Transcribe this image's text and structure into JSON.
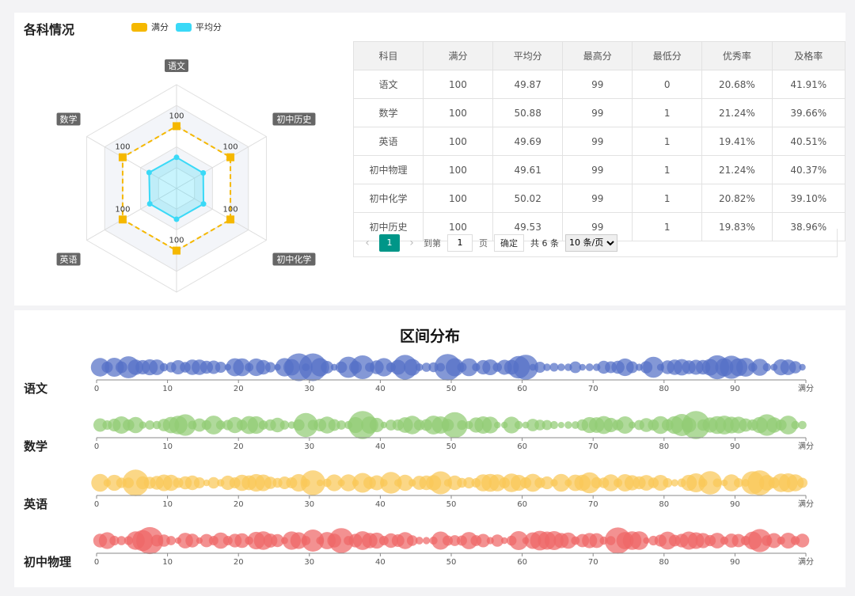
{
  "radar_section": {
    "title": "各科情况",
    "legend": [
      {
        "label": "满分",
        "color": "#f5b800"
      },
      {
        "label": "平均分",
        "color": "#3ad9f7"
      }
    ]
  },
  "chart_data": [
    {
      "type": "radar",
      "indicators": [
        "语文",
        "初中历史",
        "初中化学",
        "英语",
        "数学"
      ],
      "indicators_all": [
        "语文",
        "初中历史",
        "初中化学",
        "初中物理",
        "英语",
        "数学"
      ],
      "max": 100,
      "series": [
        {
          "name": "满分",
          "values": [
            100,
            100,
            100,
            100,
            100,
            100
          ],
          "labels": [
            "100",
            "100",
            "100",
            "100",
            "100",
            "100"
          ],
          "color": "#f5b800"
        },
        {
          "name": "平均分",
          "values": [
            49.87,
            49.53,
            50.02,
            49.61,
            49.69,
            50.88
          ],
          "color": "#3ad9f7"
        }
      ]
    },
    {
      "type": "scatter",
      "title": "区间分布",
      "x_ticks": [
        "0",
        "10",
        "20",
        "30",
        "40",
        "50",
        "60",
        "70",
        "80",
        "90",
        "满分"
      ],
      "xlim": [
        0,
        100
      ],
      "rows": [
        {
          "label": "语文",
          "color": "#5470c6",
          "seed": 3
        },
        {
          "label": "数学",
          "color": "#91cc75",
          "seed": 7
        },
        {
          "label": "英语",
          "color": "#fac858",
          "seed": 11
        },
        {
          "label": "初中物理",
          "color": "#ee6666",
          "seed": 19
        }
      ]
    }
  ],
  "table": {
    "headers": [
      "科目",
      "满分",
      "平均分",
      "最高分",
      "最低分",
      "优秀率",
      "及格率"
    ],
    "rows": [
      [
        "语文",
        "100",
        "49.87",
        "99",
        "0",
        "20.68%",
        "41.91%"
      ],
      [
        "数学",
        "100",
        "50.88",
        "99",
        "1",
        "21.24%",
        "39.66%"
      ],
      [
        "英语",
        "100",
        "49.69",
        "99",
        "1",
        "19.41%",
        "40.51%"
      ],
      [
        "初中物理",
        "100",
        "49.61",
        "99",
        "1",
        "21.24%",
        "40.37%"
      ],
      [
        "初中化学",
        "100",
        "50.02",
        "99",
        "1",
        "20.82%",
        "39.10%"
      ],
      [
        "初中历史",
        "100",
        "49.53",
        "99",
        "1",
        "19.83%",
        "38.96%"
      ]
    ]
  },
  "pagination": {
    "prev": "‹",
    "current": "1",
    "next": "›",
    "goto_label": "到第",
    "page_value": "1",
    "page_unit": "页",
    "confirm": "确定",
    "total": "共 6 条",
    "page_size_options": [
      "10 条/页"
    ]
  }
}
